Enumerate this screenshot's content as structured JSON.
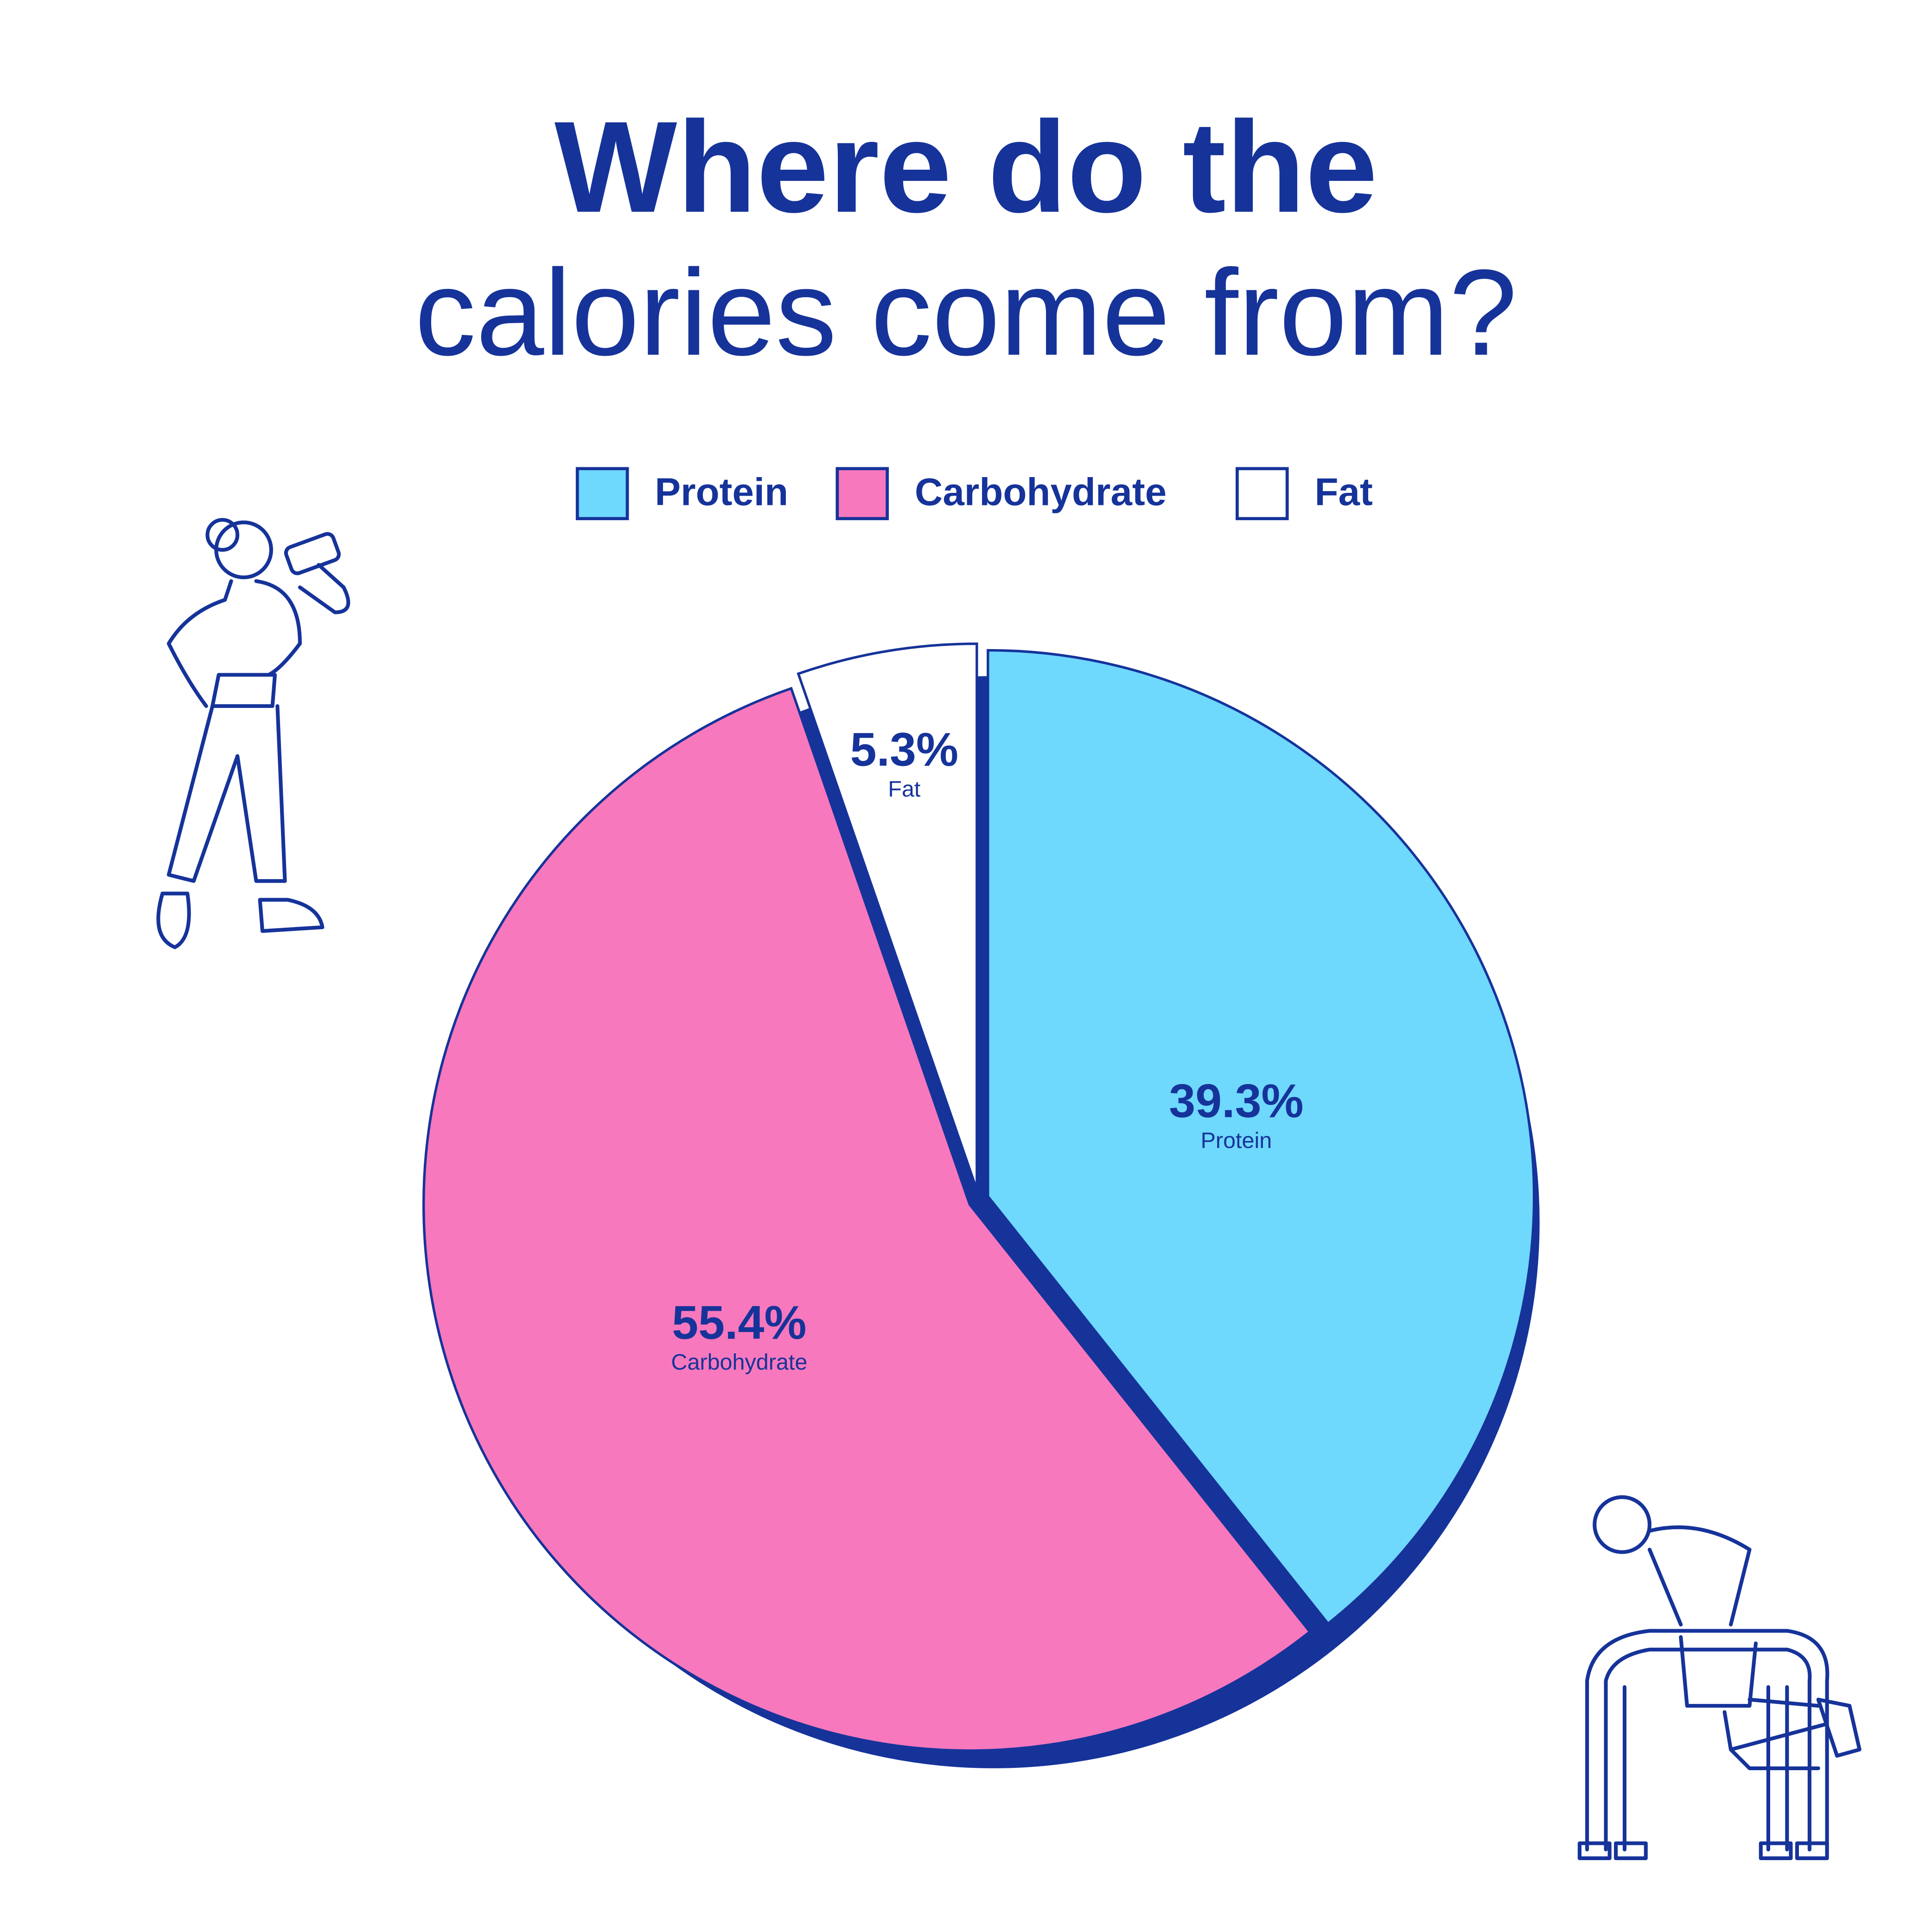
{
  "chart_data": {
    "type": "pie",
    "title": "Where do the",
    "subtitle": "calories come from?",
    "categories": [
      "Protein",
      "Carbohydrate",
      "Fat"
    ],
    "values": [
      39.3,
      55.4,
      5.3
    ],
    "value_labels": [
      "39.3%",
      "55.4%",
      "5.3%"
    ],
    "colors": [
      "#6fd8fd",
      "#f878bd",
      "#ffffff"
    ],
    "legend": "top"
  }
}
